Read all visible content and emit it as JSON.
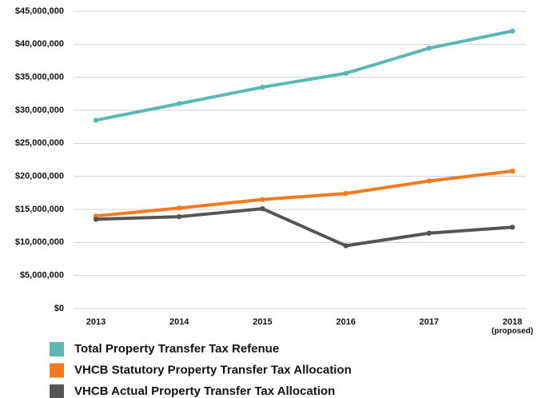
{
  "chart_data": {
    "type": "line",
    "categories": [
      "2013",
      "2014",
      "2015",
      "2016",
      "2017",
      "2018\n(proposed)"
    ],
    "series": [
      {
        "name": "Total Property Transfer Tax Refenue",
        "color": "#5ab8b0",
        "values": [
          28500000,
          31000000,
          33500000,
          35600000,
          39400000,
          42000000
        ]
      },
      {
        "name": "VHCB Statutory Property Transfer Tax Allocation",
        "color": "#f47a20",
        "values": [
          14000000,
          15200000,
          16500000,
          17400000,
          19300000,
          20800000
        ]
      },
      {
        "name": "VHCB Actual Property Transfer Tax Allocation",
        "color": "#555555",
        "values": [
          13500000,
          13900000,
          15100000,
          9500000,
          11400000,
          12300000
        ]
      }
    ],
    "ylim": [
      0,
      45000000
    ],
    "yticks": [
      {
        "value": 0,
        "label": "$0"
      },
      {
        "value": 5000000,
        "label": "$5,000,000"
      },
      {
        "value": 10000000,
        "label": "$10,000,000"
      },
      {
        "value": 15000000,
        "label": "$15,000,000"
      },
      {
        "value": 20000000,
        "label": "$20,000,000"
      },
      {
        "value": 25000000,
        "label": "$25,000,000"
      },
      {
        "value": 30000000,
        "label": "$30,000,000"
      },
      {
        "value": 35000000,
        "label": "$35,000,000"
      },
      {
        "value": 40000000,
        "label": "$40,000,000"
      },
      {
        "value": 45000000,
        "label": "$45,000,000"
      }
    ],
    "grid": true
  }
}
